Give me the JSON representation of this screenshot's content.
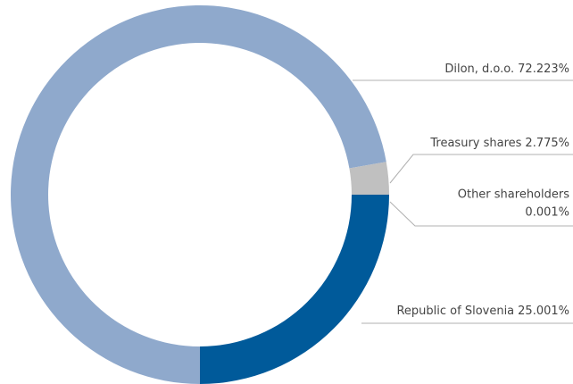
{
  "chart_data": {
    "type": "pie",
    "categories": [
      "Dilon, d.o.o.",
      "Treasury shares",
      "Other shareholders",
      "Republic of Slovenia"
    ],
    "values": [
      72.223,
      2.775,
      0.001,
      25.001
    ],
    "value_labels": [
      "72.223%",
      "2.775%",
      "0.001%",
      "25.001%"
    ],
    "colors": [
      "#8fa9cc",
      "#c0c0c0",
      "#3b5f8f",
      "#005a9a"
    ]
  }
}
